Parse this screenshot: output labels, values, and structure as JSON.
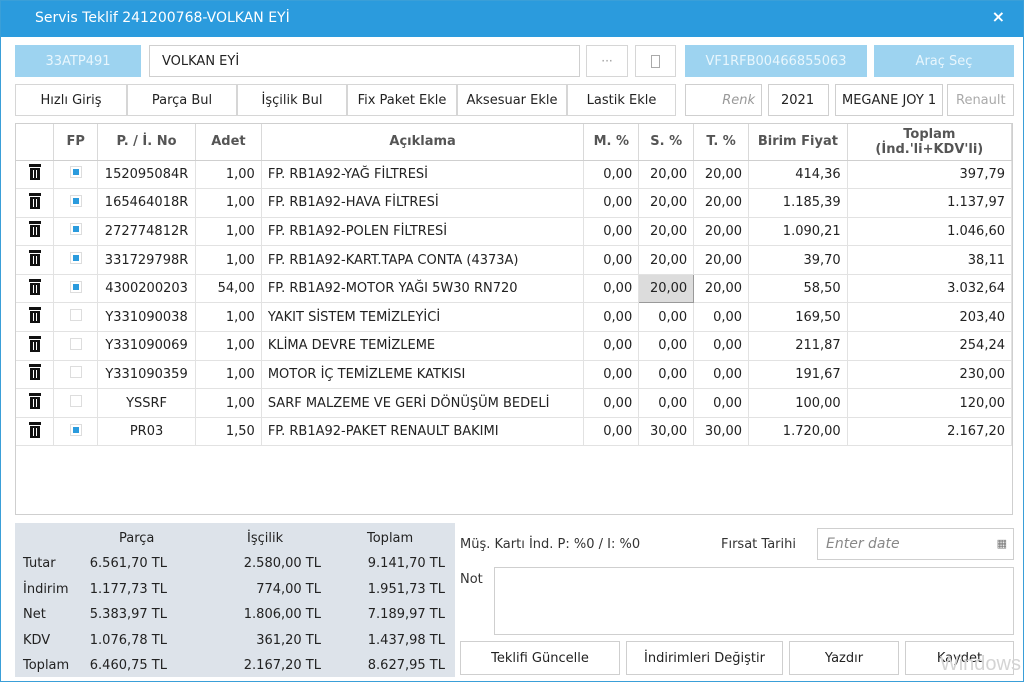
{
  "window": {
    "title": "Servis Teklif 241200768-VOLKAN EYİ",
    "close": "×"
  },
  "top_row": {
    "plate": "33ATP491",
    "customer": "VOLKAN EYİ",
    "more": "···",
    "vin": "VF1RFB00466855063",
    "select_vehicle": "Araç Seç"
  },
  "toolbar": {
    "quick_entry": "Hızlı Giriş",
    "find_part": "Parça Bul",
    "find_labor": "İşçilik Bul",
    "add_fix_package": "Fix Paket Ekle",
    "add_accessory": "Aksesuar Ekle",
    "add_tire": "Lastik Ekle",
    "color_placeholder": "Renk",
    "year": "2021",
    "model": "MEGANE JOY 1",
    "brand": "Renault"
  },
  "table": {
    "headers": [
      "",
      "FP",
      "P. / İ. No",
      "Adet",
      "Açıklama",
      "M. %",
      "S. %",
      "T. %",
      "Birim Fiyat",
      "Toplam (İnd.'li+KDV'li)"
    ],
    "rows": [
      {
        "fp": true,
        "no": "152095084R",
        "qty": "1,00",
        "desc": "FP. RB1A92-YAĞ FİLTRESİ",
        "m": "0,00",
        "s": "20,00",
        "t": "20,00",
        "unit": "414,36",
        "total": "397,79"
      },
      {
        "fp": true,
        "no": "165464018R",
        "qty": "1,00",
        "desc": "FP. RB1A92-HAVA FİLTRESİ",
        "m": "0,00",
        "s": "20,00",
        "t": "20,00",
        "unit": "1.185,39",
        "total": "1.137,97"
      },
      {
        "fp": true,
        "no": "272774812R",
        "qty": "1,00",
        "desc": "FP. RB1A92-POLEN FİLTRESİ",
        "m": "0,00",
        "s": "20,00",
        "t": "20,00",
        "unit": "1.090,21",
        "total": "1.046,60"
      },
      {
        "fp": true,
        "no": "331729798R",
        "qty": "1,00",
        "desc": "FP. RB1A92-KART.TAPA CONTA (4373A)",
        "m": "0,00",
        "s": "20,00",
        "t": "20,00",
        "unit": "39,70",
        "total": "38,11"
      },
      {
        "fp": true,
        "no": "4300200203",
        "qty": "54,00",
        "desc": "FP. RB1A92-MOTOR YAĞI 5W30 RN720",
        "m": "0,00",
        "s": "20,00",
        "t": "20,00",
        "unit": "58,50",
        "total": "3.032,64",
        "selected": true
      },
      {
        "fp": false,
        "no": "Y331090038",
        "qty": "1,00",
        "desc": "YAKIT SİSTEM TEMİZLEYİCİ",
        "m": "0,00",
        "s": "0,00",
        "t": "0,00",
        "unit": "169,50",
        "total": "203,40"
      },
      {
        "fp": false,
        "no": "Y331090069",
        "qty": "1,00",
        "desc": "KLİMA DEVRE TEMİZLEME",
        "m": "0,00",
        "s": "0,00",
        "t": "0,00",
        "unit": "211,87",
        "total": "254,24"
      },
      {
        "fp": false,
        "no": "Y331090359",
        "qty": "1,00",
        "desc": "MOTOR İÇ TEMİZLEME KATKISI",
        "m": "0,00",
        "s": "0,00",
        "t": "0,00",
        "unit": "191,67",
        "total": "230,00"
      },
      {
        "fp": false,
        "no": "YSSRF",
        "qty": "1,00",
        "desc": "SARF MALZEME VE GERİ DÖNÜŞÜM BEDELİ",
        "m": "0,00",
        "s": "0,00",
        "t": "0,00",
        "unit": "100,00",
        "total": "120,00"
      },
      {
        "fp": true,
        "no": "PR03",
        "qty": "1,50",
        "desc": "FP. RB1A92-PAKET RENAULT BAKIMI",
        "m": "0,00",
        "s": "30,00",
        "t": "30,00",
        "unit": "1.720,00",
        "total": "2.167,20"
      }
    ]
  },
  "summary": {
    "headers": [
      "Parça",
      "İşçilik",
      "Toplam"
    ],
    "rows": [
      {
        "label": "Tutar",
        "part": "6.561,70 TL",
        "labor": "2.580,00 TL",
        "total": "9.141,70 TL"
      },
      {
        "label": "İndirim",
        "part": "1.177,73 TL",
        "labor": "774,00 TL",
        "total": "1.951,73 TL"
      },
      {
        "label": "Net",
        "part": "5.383,97 TL",
        "labor": "1.806,00 TL",
        "total": "7.189,97 TL"
      },
      {
        "label": "KDV",
        "part": "1.076,78 TL",
        "labor": "361,20 TL",
        "total": "1.437,98 TL"
      },
      {
        "label": "Toplam",
        "part": "6.460,75 TL",
        "labor": "2.167,20 TL",
        "total": "8.627,95 TL"
      }
    ]
  },
  "right_panel": {
    "card_discount": "Müş. Kartı İnd. P: %0 / I: %0",
    "opportunity_date_label": "Fırsat Tarihi",
    "date_placeholder": "Enter date",
    "note_label": "Not"
  },
  "actions": {
    "update_quote": "Teklifi Güncelle",
    "change_discounts": "İndirimleri Değiştir",
    "print": "Yazdır",
    "save": "Kaydet"
  },
  "watermark": "Windows",
  "colors": {
    "titlebar": "#2b9bdd",
    "accent_disabled": "#9dd3f0",
    "summary_bg": "#dde3ea"
  }
}
